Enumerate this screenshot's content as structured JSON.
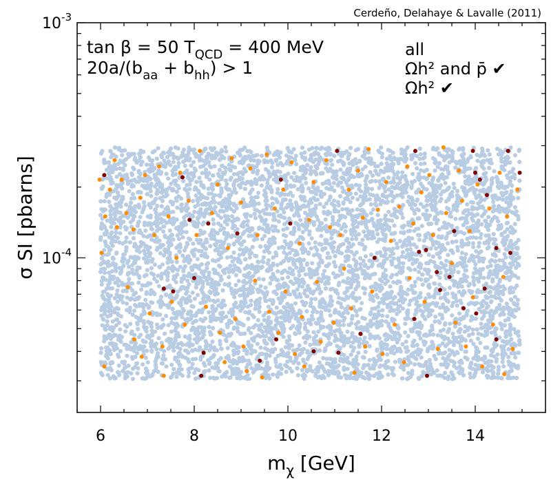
{
  "chart_data": {
    "type": "scatter",
    "credit": "Cerdeño, Delahaye & Lavalle (2011)",
    "annotation": {
      "line1_a": "tan β = 50  T",
      "line1_sub": "QCD",
      "line1_b": " = 400 MeV",
      "line2_a": " 20a/(b",
      "line2_sub1": "aa",
      "line2_b": " + b",
      "line2_sub2": "hh",
      "line2_c": ") > 1"
    },
    "xlabel_main": "m",
    "xlabel_sub": "χ",
    "xlabel_unit": " [GeV]",
    "ylabel": "σ SI [pbarns]",
    "xlim": [
      5.5,
      15.5
    ],
    "ylim": [
      2.2e-05,
      0.001
    ],
    "yscale": "log",
    "x_ticks": [
      6,
      8,
      10,
      12,
      14
    ],
    "x_tick_labels": [
      "6",
      "8",
      "10",
      "12",
      "14"
    ],
    "y_major_ticks": [
      0.0001,
      0.001
    ],
    "y_tick_labels": [
      {
        "base": "10",
        "exp": "-4"
      },
      {
        "base": "10",
        "exp": "-3"
      }
    ],
    "legend_position": "top-right",
    "series": [
      {
        "name": "all",
        "color": "#b8cce4",
        "region": {
          "x_min": 6.0,
          "x_max": 14.95,
          "y_min": 3.05e-05,
          "y_max": 0.000295
        },
        "approx_count": 6000
      },
      {
        "name": "Ωh² and p̄ ✔",
        "color": "#800000",
        "points": [
          [
            6.08,
            0.000225
          ],
          [
            7.35,
            7.4e-05
          ],
          [
            7.55,
            7.2e-05
          ],
          [
            7.75,
            0.00022
          ],
          [
            7.9,
            0.000145
          ],
          [
            8.0,
            8.2e-05
          ],
          [
            8.2,
            3.95e-05
          ],
          [
            8.15,
            3.15e-05
          ],
          [
            8.3,
            0.00014
          ],
          [
            8.92,
            0.000127
          ],
          [
            9.4,
            3.65e-05
          ],
          [
            9.75,
            4.5e-05
          ],
          [
            9.85,
            0.000215
          ],
          [
            10.05,
            0.00014
          ],
          [
            11.05,
            0.000285
          ],
          [
            10.55,
            4e-05
          ],
          [
            11.08,
            3.95e-05
          ],
          [
            11.55,
            4.75e-05
          ],
          [
            12.8,
            0.000106
          ],
          [
            12.7,
            5.5e-05
          ],
          [
            12.72,
            0.000285
          ],
          [
            12.95,
            0.000108
          ],
          [
            12.97,
            3.15e-05
          ],
          [
            13.25,
            7.3e-05
          ],
          [
            13.18,
            8.7e-05
          ],
          [
            13.45,
            8.3e-05
          ],
          [
            13.55,
            0.00013
          ],
          [
            13.75,
            6.1e-05
          ],
          [
            13.95,
            0.000285
          ],
          [
            14.0,
            0.00023
          ],
          [
            14.1,
            0.000215
          ],
          [
            14.25,
            0.000185
          ],
          [
            14.2,
            7.4e-05
          ],
          [
            14.45,
            0.00011
          ],
          [
            14.45,
            4.5e-05
          ],
          [
            14.7,
            0.000285
          ],
          [
            14.95,
            0.00023
          ],
          [
            14.75,
            0.000105
          ],
          [
            14.02,
            5.8e-05
          ],
          [
            11.85,
            0.0001
          ]
        ]
      },
      {
        "name": "Ωh² ✔",
        "color": "#ff8c00",
        "points": [
          [
            5.98,
            0.000215
          ],
          [
            6.02,
            0.000105
          ],
          [
            6.1,
            0.00015
          ],
          [
            6.08,
            3.45e-05
          ],
          [
            6.2,
            0.000195
          ],
          [
            6.3,
            0.00026
          ],
          [
            6.35,
            0.000135
          ],
          [
            6.45,
            0.000215
          ],
          [
            6.55,
            0.000155
          ],
          [
            6.58,
            7.5e-05
          ],
          [
            6.7,
            0.000132
          ],
          [
            6.72,
            4.5e-05
          ],
          [
            6.85,
            0.00018
          ],
          [
            6.88,
            3.8e-05
          ],
          [
            6.95,
            0.000225
          ],
          [
            7.05,
            5.8e-05
          ],
          [
            7.15,
            0.000125
          ],
          [
            7.25,
            0.000245
          ],
          [
            7.32,
            4.2e-05
          ],
          [
            7.35,
            3.15e-05
          ],
          [
            7.45,
            0.00015
          ],
          [
            7.52,
            6.5e-05
          ],
          [
            7.62,
            0.0001
          ],
          [
            7.7,
            0.00023
          ],
          [
            7.8,
            5.2e-05
          ],
          [
            7.88,
            0.000175
          ],
          [
            8.05,
            0.000125
          ],
          [
            8.12,
            0.000285
          ],
          [
            8.25,
            6.2e-05
          ],
          [
            8.38,
            0.000155
          ],
          [
            8.5,
            0.000205
          ],
          [
            8.55,
            4.8e-05
          ],
          [
            8.65,
            3.6e-05
          ],
          [
            8.72,
            0.00011
          ],
          [
            8.8,
            0.000265
          ],
          [
            8.88,
            5.5e-05
          ],
          [
            9.0,
            0.000172
          ],
          [
            9.05,
            4.2e-05
          ],
          [
            9.12,
            3.3e-05
          ],
          [
            9.2,
            0.00024
          ],
          [
            9.3,
            8e-05
          ],
          [
            9.35,
            0.000125
          ],
          [
            9.45,
            3.1e-05
          ],
          [
            9.55,
            0.000275
          ],
          [
            9.6,
            5.9e-05
          ],
          [
            9.72,
            0.000162
          ],
          [
            9.8,
            4.8e-05
          ],
          [
            9.9,
            0.000195
          ],
          [
            9.95,
            7.2e-05
          ],
          [
            10.08,
            0.000255
          ],
          [
            10.15,
            3.9e-05
          ],
          [
            10.25,
            0.000115
          ],
          [
            10.3,
            5.6e-05
          ],
          [
            10.35,
            3.45e-05
          ],
          [
            10.45,
            0.000145
          ],
          [
            10.55,
            0.00021
          ],
          [
            10.62,
            7.9e-05
          ],
          [
            10.7,
            4.4e-05
          ],
          [
            10.82,
            0.00026
          ],
          [
            10.9,
            0.000135
          ],
          [
            10.98,
            5.3e-05
          ],
          [
            11.12,
            0.000125
          ],
          [
            11.2,
            9e-05
          ],
          [
            11.3,
            0.000195
          ],
          [
            11.35,
            6.1e-05
          ],
          [
            11.42,
            3.25e-05
          ],
          [
            11.5,
            0.000235
          ],
          [
            11.6,
            0.000148
          ],
          [
            11.65,
            4.2e-05
          ],
          [
            11.72,
            0.00029
          ],
          [
            11.8,
            7.2e-05
          ],
          [
            11.92,
            0.00016
          ],
          [
            12.02,
            3.9e-05
          ],
          [
            12.1,
            0.00021
          ],
          [
            12.2,
            0.000118
          ],
          [
            12.28,
            5.2e-05
          ],
          [
            12.38,
            0.000165
          ],
          [
            12.48,
            3.6e-05
          ],
          [
            12.55,
            0.000245
          ],
          [
            12.6,
            8.2e-05
          ],
          [
            12.68,
            0.00014
          ],
          [
            12.85,
            0.00019
          ],
          [
            12.92,
            6.5e-05
          ],
          [
            13.02,
            0.000225
          ],
          [
            13.1,
            0.000125
          ],
          [
            13.2,
            4.1e-05
          ],
          [
            13.32,
            0.000295
          ],
          [
            13.38,
            0.000155
          ],
          [
            13.5,
            9.5e-05
          ],
          [
            13.58,
            5.3e-05
          ],
          [
            13.65,
            0.000235
          ],
          [
            13.72,
            0.000175
          ],
          [
            13.8,
            4.2e-05
          ],
          [
            13.88,
            0.00013
          ],
          [
            13.95,
            6.8e-05
          ],
          [
            14.05,
            0.000205
          ],
          [
            14.15,
            3.45e-05
          ],
          [
            14.3,
            0.000162
          ],
          [
            14.38,
            5.2e-05
          ],
          [
            14.52,
            0.00023
          ],
          [
            14.6,
            8.3e-05
          ],
          [
            14.68,
            0.00015
          ],
          [
            14.8,
            4.1e-05
          ],
          [
            14.9,
            0.000195
          ],
          [
            14.62,
            3.2e-05
          ]
        ]
      }
    ]
  }
}
